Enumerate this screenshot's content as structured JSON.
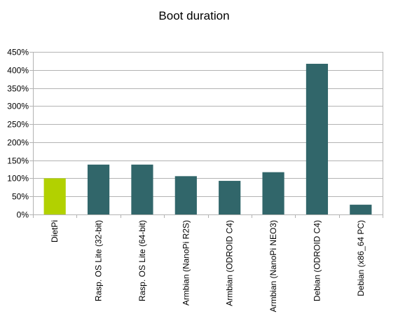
{
  "chart_data": {
    "type": "bar",
    "title": "Boot duration",
    "xlabel": "",
    "ylabel": "",
    "ylim": [
      0,
      450
    ],
    "y_unit": "%",
    "y_ticks": [
      0,
      50,
      100,
      150,
      200,
      250,
      300,
      350,
      400,
      450
    ],
    "y_tick_labels": [
      "0%",
      "50%",
      "100%",
      "150%",
      "200%",
      "250%",
      "300%",
      "350%",
      "400%",
      "450%"
    ],
    "grid": true,
    "categories": [
      "DietPi",
      "Rasp. OS Lite (32-bit)",
      "Rasp. OS Lite (64-bit)",
      "Armbian (NanoPi R2S)",
      "Armbian (ODROID C4)",
      "Armbian (NanoPi NEO3)",
      "Debian (ODROID C4)",
      "Debian (x86_64 PC)"
    ],
    "values": [
      100,
      138,
      138,
      106,
      93,
      117,
      417,
      27
    ],
    "colors": [
      "#b2d100",
      "#31666a",
      "#31666a",
      "#31666a",
      "#31666a",
      "#31666a",
      "#31666a",
      "#31666a"
    ]
  }
}
